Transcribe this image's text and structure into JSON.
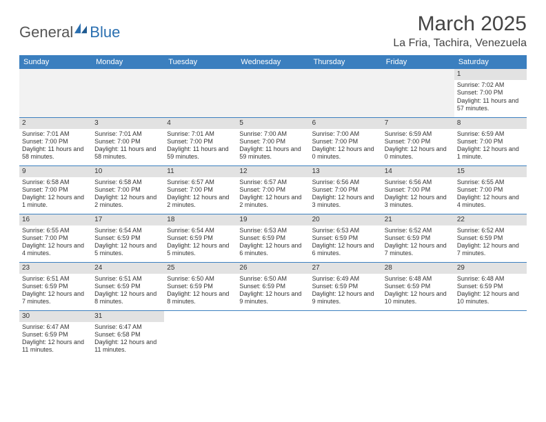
{
  "logo": {
    "general": "General",
    "blue": "Blue"
  },
  "header": {
    "month_title": "March 2025",
    "location": "La Fria, Tachira, Venezuela"
  },
  "colors": {
    "header_bg": "#3b7fbf",
    "header_text": "#ffffff",
    "day_head_bg": "#e2e2e2",
    "row_border": "#3b7fbf",
    "logo_blue": "#2a6fb0",
    "logo_gray": "#555555",
    "text": "#333333",
    "page_bg": "#ffffff"
  },
  "weekdays": [
    "Sunday",
    "Monday",
    "Tuesday",
    "Wednesday",
    "Thursday",
    "Friday",
    "Saturday"
  ],
  "layout": {
    "lead_empty_cells": 6,
    "trail_empty_cells": 5
  },
  "days": [
    {
      "n": "1",
      "sunrise": "Sunrise: 7:02 AM",
      "sunset": "Sunset: 7:00 PM",
      "daylight": "Daylight: 11 hours and 57 minutes."
    },
    {
      "n": "2",
      "sunrise": "Sunrise: 7:01 AM",
      "sunset": "Sunset: 7:00 PM",
      "daylight": "Daylight: 11 hours and 58 minutes."
    },
    {
      "n": "3",
      "sunrise": "Sunrise: 7:01 AM",
      "sunset": "Sunset: 7:00 PM",
      "daylight": "Daylight: 11 hours and 58 minutes."
    },
    {
      "n": "4",
      "sunrise": "Sunrise: 7:01 AM",
      "sunset": "Sunset: 7:00 PM",
      "daylight": "Daylight: 11 hours and 59 minutes."
    },
    {
      "n": "5",
      "sunrise": "Sunrise: 7:00 AM",
      "sunset": "Sunset: 7:00 PM",
      "daylight": "Daylight: 11 hours and 59 minutes."
    },
    {
      "n": "6",
      "sunrise": "Sunrise: 7:00 AM",
      "sunset": "Sunset: 7:00 PM",
      "daylight": "Daylight: 12 hours and 0 minutes."
    },
    {
      "n": "7",
      "sunrise": "Sunrise: 6:59 AM",
      "sunset": "Sunset: 7:00 PM",
      "daylight": "Daylight: 12 hours and 0 minutes."
    },
    {
      "n": "8",
      "sunrise": "Sunrise: 6:59 AM",
      "sunset": "Sunset: 7:00 PM",
      "daylight": "Daylight: 12 hours and 1 minute."
    },
    {
      "n": "9",
      "sunrise": "Sunrise: 6:58 AM",
      "sunset": "Sunset: 7:00 PM",
      "daylight": "Daylight: 12 hours and 1 minute."
    },
    {
      "n": "10",
      "sunrise": "Sunrise: 6:58 AM",
      "sunset": "Sunset: 7:00 PM",
      "daylight": "Daylight: 12 hours and 2 minutes."
    },
    {
      "n": "11",
      "sunrise": "Sunrise: 6:57 AM",
      "sunset": "Sunset: 7:00 PM",
      "daylight": "Daylight: 12 hours and 2 minutes."
    },
    {
      "n": "12",
      "sunrise": "Sunrise: 6:57 AM",
      "sunset": "Sunset: 7:00 PM",
      "daylight": "Daylight: 12 hours and 2 minutes."
    },
    {
      "n": "13",
      "sunrise": "Sunrise: 6:56 AM",
      "sunset": "Sunset: 7:00 PM",
      "daylight": "Daylight: 12 hours and 3 minutes."
    },
    {
      "n": "14",
      "sunrise": "Sunrise: 6:56 AM",
      "sunset": "Sunset: 7:00 PM",
      "daylight": "Daylight: 12 hours and 3 minutes."
    },
    {
      "n": "15",
      "sunrise": "Sunrise: 6:55 AM",
      "sunset": "Sunset: 7:00 PM",
      "daylight": "Daylight: 12 hours and 4 minutes."
    },
    {
      "n": "16",
      "sunrise": "Sunrise: 6:55 AM",
      "sunset": "Sunset: 7:00 PM",
      "daylight": "Daylight: 12 hours and 4 minutes."
    },
    {
      "n": "17",
      "sunrise": "Sunrise: 6:54 AM",
      "sunset": "Sunset: 6:59 PM",
      "daylight": "Daylight: 12 hours and 5 minutes."
    },
    {
      "n": "18",
      "sunrise": "Sunrise: 6:54 AM",
      "sunset": "Sunset: 6:59 PM",
      "daylight": "Daylight: 12 hours and 5 minutes."
    },
    {
      "n": "19",
      "sunrise": "Sunrise: 6:53 AM",
      "sunset": "Sunset: 6:59 PM",
      "daylight": "Daylight: 12 hours and 6 minutes."
    },
    {
      "n": "20",
      "sunrise": "Sunrise: 6:53 AM",
      "sunset": "Sunset: 6:59 PM",
      "daylight": "Daylight: 12 hours and 6 minutes."
    },
    {
      "n": "21",
      "sunrise": "Sunrise: 6:52 AM",
      "sunset": "Sunset: 6:59 PM",
      "daylight": "Daylight: 12 hours and 7 minutes."
    },
    {
      "n": "22",
      "sunrise": "Sunrise: 6:52 AM",
      "sunset": "Sunset: 6:59 PM",
      "daylight": "Daylight: 12 hours and 7 minutes."
    },
    {
      "n": "23",
      "sunrise": "Sunrise: 6:51 AM",
      "sunset": "Sunset: 6:59 PM",
      "daylight": "Daylight: 12 hours and 7 minutes."
    },
    {
      "n": "24",
      "sunrise": "Sunrise: 6:51 AM",
      "sunset": "Sunset: 6:59 PM",
      "daylight": "Daylight: 12 hours and 8 minutes."
    },
    {
      "n": "25",
      "sunrise": "Sunrise: 6:50 AM",
      "sunset": "Sunset: 6:59 PM",
      "daylight": "Daylight: 12 hours and 8 minutes."
    },
    {
      "n": "26",
      "sunrise": "Sunrise: 6:50 AM",
      "sunset": "Sunset: 6:59 PM",
      "daylight": "Daylight: 12 hours and 9 minutes."
    },
    {
      "n": "27",
      "sunrise": "Sunrise: 6:49 AM",
      "sunset": "Sunset: 6:59 PM",
      "daylight": "Daylight: 12 hours and 9 minutes."
    },
    {
      "n": "28",
      "sunrise": "Sunrise: 6:48 AM",
      "sunset": "Sunset: 6:59 PM",
      "daylight": "Daylight: 12 hours and 10 minutes."
    },
    {
      "n": "29",
      "sunrise": "Sunrise: 6:48 AM",
      "sunset": "Sunset: 6:59 PM",
      "daylight": "Daylight: 12 hours and 10 minutes."
    },
    {
      "n": "30",
      "sunrise": "Sunrise: 6:47 AM",
      "sunset": "Sunset: 6:59 PM",
      "daylight": "Daylight: 12 hours and 11 minutes."
    },
    {
      "n": "31",
      "sunrise": "Sunrise: 6:47 AM",
      "sunset": "Sunset: 6:58 PM",
      "daylight": "Daylight: 12 hours and 11 minutes."
    }
  ]
}
